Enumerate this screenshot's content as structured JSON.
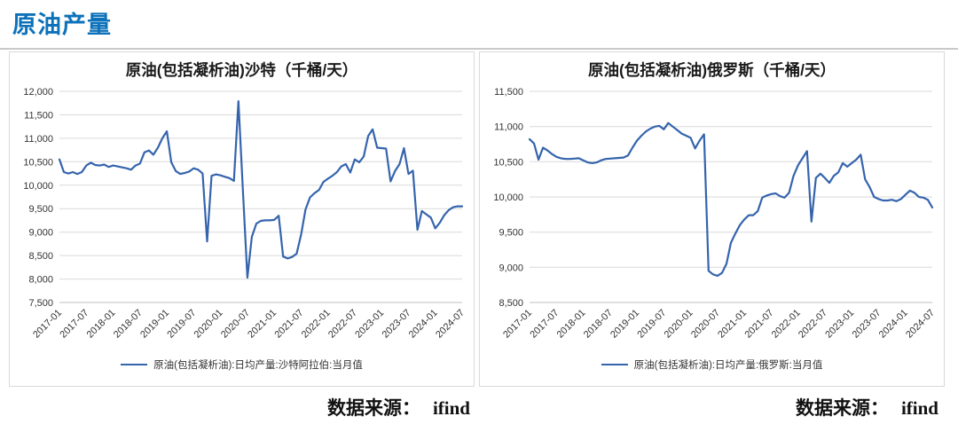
{
  "header": {
    "title": "原油产量"
  },
  "colors": {
    "accent": "#0d72b9",
    "line": "#3564ad",
    "grid": "#d9d9d9",
    "axis": "#bfbfbf"
  },
  "footer": {
    "left": {
      "source_label": "数据来源：",
      "source_value": "ifind"
    },
    "right": {
      "source_label": "数据来源：",
      "source_value": "ifind"
    }
  },
  "chart_data": [
    {
      "type": "line",
      "title": "原油(包括凝析油)沙特（千桶/天）",
      "legend": "原油(包括凝析油):日均产量:沙特阿拉伯:当月值",
      "xlabel": "",
      "ylabel": "",
      "grid": true,
      "legend_position": "bottom",
      "x_start": "2017-01",
      "x_interval": "monthly",
      "x_tick_labels": [
        "2017-01",
        "2017-07",
        "2018-01",
        "2018-07",
        "2019-01",
        "2019-07",
        "2020-01",
        "2020-07",
        "2021-01",
        "2021-07",
        "2022-01",
        "2022-07",
        "2023-01",
        "2023-07",
        "2024-01",
        "2024-07"
      ],
      "ylim": [
        7500,
        12000
      ],
      "ytick_step": 500,
      "values": [
        10550,
        10280,
        10250,
        10280,
        10240,
        10280,
        10420,
        10480,
        10430,
        10420,
        10440,
        10390,
        10420,
        10400,
        10380,
        10360,
        10330,
        10420,
        10460,
        10700,
        10740,
        10650,
        10800,
        11000,
        11150,
        10490,
        10300,
        10240,
        10260,
        10290,
        10360,
        10330,
        10250,
        8800,
        10200,
        10230,
        10210,
        10180,
        10150,
        10090,
        11790,
        9900,
        8030,
        8900,
        9180,
        9240,
        9250,
        9250,
        9260,
        9350,
        8480,
        8440,
        8470,
        8540,
        8940,
        9480,
        9740,
        9830,
        9900,
        10070,
        10140,
        10200,
        10280,
        10400,
        10450,
        10270,
        10550,
        10490,
        10610,
        11050,
        11190,
        10800,
        10790,
        10780,
        10080,
        10300,
        10450,
        10790,
        10240,
        10310,
        9050,
        9450,
        9380,
        9310,
        9080,
        9200,
        9360,
        9470,
        9530,
        9550,
        9550
      ]
    },
    {
      "type": "line",
      "title": "原油(包括凝析油)俄罗斯（千桶/天）",
      "legend": "原油(包括凝析油):日均产量:俄罗斯:当月值",
      "xlabel": "",
      "ylabel": "",
      "grid": true,
      "legend_position": "bottom",
      "x_start": "2017-01",
      "x_interval": "monthly",
      "x_tick_labels": [
        "2017-01",
        "2017-07",
        "2018-01",
        "2018-07",
        "2019-01",
        "2019-07",
        "2020-01",
        "2020-07",
        "2021-01",
        "2021-07",
        "2022-01",
        "2022-07",
        "2023-01",
        "2023-07",
        "2024-01",
        "2024-07"
      ],
      "ylim": [
        8500,
        11500
      ],
      "ytick_step": 500,
      "values": [
        10820,
        10760,
        10530,
        10700,
        10660,
        10610,
        10570,
        10550,
        10540,
        10540,
        10545,
        10550,
        10520,
        10490,
        10480,
        10490,
        10520,
        10540,
        10545,
        10550,
        10555,
        10560,
        10590,
        10700,
        10800,
        10870,
        10930,
        10970,
        11000,
        11010,
        10960,
        11050,
        11000,
        10950,
        10900,
        10870,
        10840,
        10690,
        10800,
        10890,
        8950,
        8900,
        8880,
        8920,
        9050,
        9350,
        9480,
        9600,
        9680,
        9740,
        9740,
        9800,
        9990,
        10020,
        10040,
        10050,
        10010,
        9990,
        10060,
        10300,
        10450,
        10550,
        10650,
        9650,
        10270,
        10330,
        10270,
        10200,
        10300,
        10350,
        10480,
        10430,
        10480,
        10530,
        10600,
        10250,
        10140,
        10000,
        9970,
        9950,
        9950,
        9960,
        9940,
        9970,
        10030,
        10090,
        10060,
        10000,
        9990,
        9960,
        9850
      ]
    }
  ]
}
